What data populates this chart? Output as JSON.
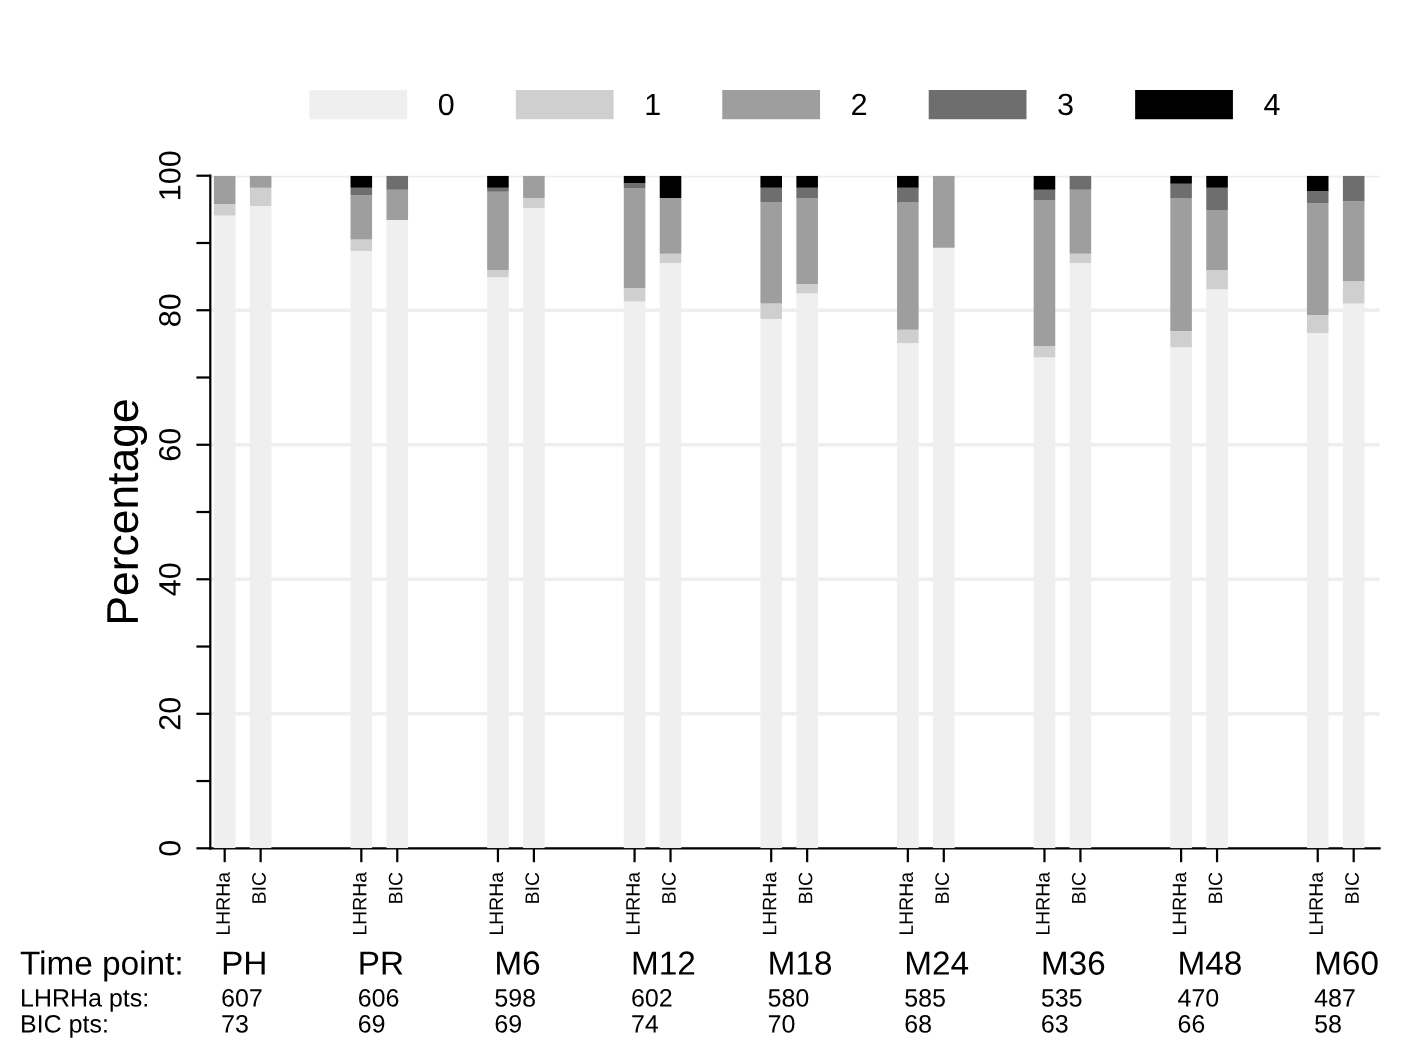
{
  "chart_data": {
    "type": "bar",
    "stacked": true,
    "categories": [
      "LHRHa",
      "BIC",
      "LHRHa",
      "BIC",
      "LHRHa",
      "BIC",
      "LHRHa",
      "BIC",
      "LHRHa",
      "BIC",
      "LHRHa",
      "BIC",
      "LHRHa",
      "BIC",
      "LHRHa",
      "BIC",
      "LHRHa",
      "BIC"
    ],
    "series": [
      {
        "name": "0",
        "color": "#efefef",
        "values": [
          94.1,
          95.5,
          88.8,
          93.4,
          84.9,
          95.2,
          81.3,
          87.0,
          78.7,
          82.5,
          75.1,
          89.3,
          73.0,
          87.0,
          74.5,
          83.1,
          76.6,
          81.0
        ]
      },
      {
        "name": "1",
        "color": "#cfcfcf",
        "values": [
          1.7,
          2.7,
          1.7,
          0,
          1.1,
          1.5,
          2.0,
          1.4,
          2.3,
          1.4,
          2.0,
          0,
          1.7,
          1.4,
          2.4,
          2.9,
          2.7,
          3.3
        ]
      },
      {
        "name": "2",
        "color": "#9e9e9e",
        "values": [
          4.2,
          1.8,
          6.6,
          4.5,
          11.6,
          3.3,
          14.8,
          8.3,
          15.1,
          12.8,
          19.0,
          10.7,
          21.7,
          9.5,
          19.8,
          8.9,
          16.6,
          11.9
        ]
      },
      {
        "name": "3",
        "color": "#6e6e6e",
        "values": [
          0,
          0,
          1.1,
          2.1,
          0.6,
          0,
          0.8,
          0,
          2.1,
          1.5,
          2.1,
          0,
          1.5,
          2.1,
          2.1,
          3.3,
          1.8,
          3.8
        ]
      },
      {
        "name": "4",
        "color": "#000000",
        "values": [
          0,
          0,
          1.8,
          0,
          1.8,
          0,
          1.1,
          3.3,
          1.8,
          1.8,
          1.8,
          0,
          2.1,
          0,
          1.2,
          1.8,
          2.3,
          0
        ]
      }
    ],
    "ylabel": "Percentage",
    "ylim": [
      0,
      100
    ],
    "yticks": [
      0,
      {
        "value": 10,
        "label": null
      },
      20,
      {
        "value": 30,
        "label": null
      },
      40,
      {
        "value": 50,
        "label": null
      },
      60,
      {
        "value": 70,
        "label": null
      },
      80,
      {
        "value": 90,
        "label": null
      },
      100
    ],
    "grid": "y",
    "legend": "top",
    "annotations": [
      "Time point:",
      "LHRHa pts:",
      "BIC pts:",
      "PH",
      "607",
      "73",
      "PR",
      "606",
      "69",
      "M6",
      "598",
      "69",
      "M12",
      "602",
      "74",
      "M18",
      "580",
      "70",
      "M24",
      "585",
      "68",
      "M36",
      "535",
      "63",
      "M48",
      "470",
      "66",
      "M60",
      "487",
      "58"
    ]
  }
}
